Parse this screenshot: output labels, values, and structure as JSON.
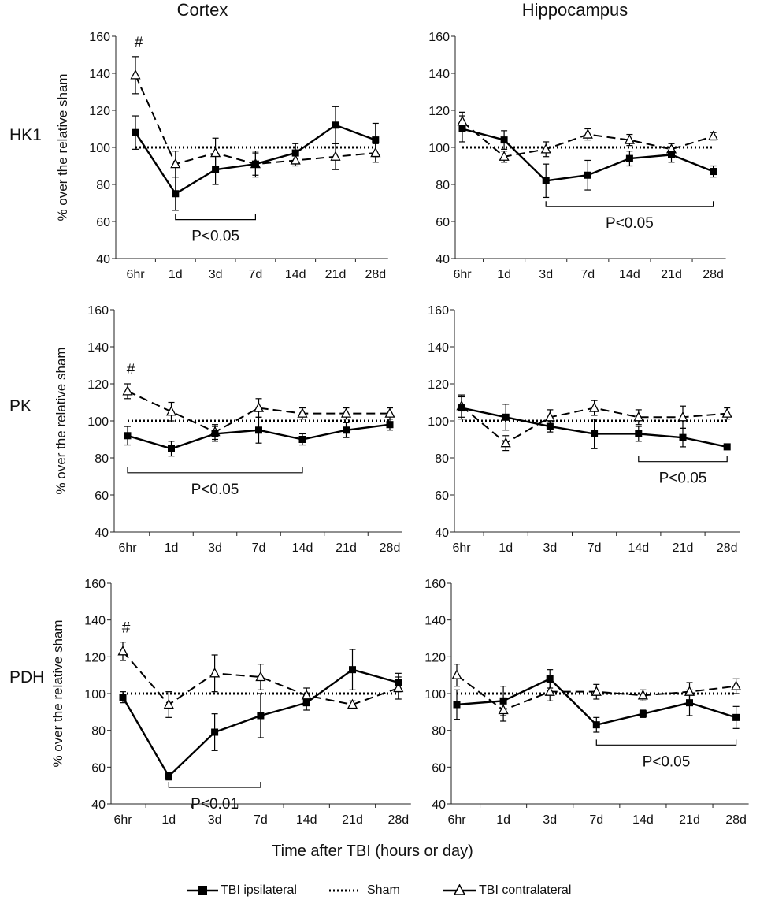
{
  "figure": {
    "col_titles": [
      "Cortex",
      "Hippocampus"
    ],
    "row_labels": [
      "HK1",
      "PK",
      "PDH"
    ],
    "xlabel": "Time after TBI (hours or day)",
    "legend": {
      "ipsi": "TBI ipsilateral",
      "sham": "Sham",
      "contra": "TBI contralateral"
    }
  },
  "chart_data": [
    {
      "type": "line",
      "title": "Cortex",
      "row": "HK1",
      "ylabel": "% over the relative sham",
      "categories": [
        "6hr",
        "1d",
        "3d",
        "7d",
        "14d",
        "21d",
        "28d"
      ],
      "ylim": [
        40,
        160
      ],
      "yticks": [
        40,
        60,
        80,
        100,
        120,
        140,
        160
      ],
      "series": [
        {
          "name": "TBI ipsilateral",
          "values": [
            108,
            75,
            88,
            91,
            97,
            112,
            104
          ],
          "errors": [
            9,
            9,
            8,
            6,
            5,
            10,
            9
          ]
        },
        {
          "name": "Sham",
          "values": [
            100,
            100,
            100,
            100,
            100,
            100,
            100
          ]
        },
        {
          "name": "TBI contralateral",
          "values": [
            139,
            91,
            97,
            91,
            93,
            95,
            97
          ],
          "errors": [
            10,
            7,
            8,
            7,
            3,
            7,
            5
          ]
        }
      ],
      "annotations": {
        "hash": {
          "text": "#",
          "at": "6hr"
        },
        "bracket": {
          "text": "P<0.05",
          "from": "1d",
          "to": "7d",
          "y": 61
        }
      }
    },
    {
      "type": "line",
      "title": "Hippocampus",
      "row": "HK1",
      "ylabel": "",
      "categories": [
        "6hr",
        "1d",
        "3d",
        "7d",
        "14d",
        "21d",
        "28d"
      ],
      "ylim": [
        40,
        160
      ],
      "yticks": [
        40,
        60,
        80,
        100,
        120,
        140,
        160
      ],
      "series": [
        {
          "name": "TBI ipsilateral",
          "values": [
            110,
            104,
            82,
            85,
            94,
            96,
            87
          ],
          "errors": [
            7,
            5,
            9,
            8,
            4,
            4,
            3
          ]
        },
        {
          "name": "Sham",
          "values": [
            100,
            100,
            100,
            100,
            100,
            100,
            100
          ]
        },
        {
          "name": "TBI contralateral",
          "values": [
            114,
            95,
            99,
            107,
            104,
            99,
            106
          ],
          "errors": [
            5,
            3,
            4,
            3,
            3,
            3,
            2
          ]
        }
      ],
      "annotations": {
        "bracket": {
          "text": "P<0.05",
          "from": "3d",
          "to": "28d",
          "y": 68
        }
      }
    },
    {
      "type": "line",
      "title": "Cortex",
      "row": "PK",
      "ylabel": "% over the relative sham",
      "categories": [
        "6hr",
        "1d",
        "3d",
        "7d",
        "14d",
        "21d",
        "28d"
      ],
      "ylim": [
        40,
        160
      ],
      "yticks": [
        40,
        60,
        80,
        100,
        120,
        140,
        160
      ],
      "series": [
        {
          "name": "TBI ipsilateral",
          "values": [
            92,
            85,
            93,
            95,
            90,
            95,
            98
          ],
          "errors": [
            5,
            4,
            4,
            7,
            3,
            4,
            3
          ]
        },
        {
          "name": "Sham",
          "values": [
            100,
            100,
            100,
            100,
            100,
            100,
            100
          ]
        },
        {
          "name": "TBI contralateral",
          "values": [
            116,
            105,
            94,
            107,
            104,
            104,
            104
          ],
          "errors": [
            4,
            5,
            4,
            5,
            3,
            3,
            3
          ]
        }
      ],
      "annotations": {
        "hash": {
          "text": "#",
          "at": "6hr"
        },
        "bracket": {
          "text": "P<0.05",
          "from": "6hr",
          "to": "14d",
          "y": 72
        }
      }
    },
    {
      "type": "line",
      "title": "Hippocampus",
      "row": "PK",
      "ylabel": "",
      "categories": [
        "6hr",
        "1d",
        "3d",
        "7d",
        "14d",
        "21d",
        "28d"
      ],
      "ylim": [
        40,
        160
      ],
      "yticks": [
        40,
        60,
        80,
        100,
        120,
        140,
        160
      ],
      "series": [
        {
          "name": "TBI ipsilateral",
          "values": [
            107,
            102,
            97,
            93,
            93,
            91,
            86
          ],
          "errors": [
            6,
            7,
            3,
            8,
            4,
            5,
            1
          ]
        },
        {
          "name": "Sham",
          "values": [
            100,
            100,
            100,
            100,
            100,
            100,
            100
          ]
        },
        {
          "name": "TBI contralateral",
          "values": [
            108,
            88,
            102,
            107,
            102,
            102,
            104
          ],
          "errors": [
            6,
            4,
            4,
            4,
            4,
            6,
            3
          ]
        }
      ],
      "annotations": {
        "bracket": {
          "text": "P<0.05",
          "from": "14d",
          "to": "28d",
          "y": 78
        }
      }
    },
    {
      "type": "line",
      "title": "Cortex",
      "row": "PDH",
      "ylabel": "% over the relative sham",
      "categories": [
        "6hr",
        "1d",
        "3d",
        "7d",
        "14d",
        "21d",
        "28d"
      ],
      "ylim": [
        40,
        160
      ],
      "yticks": [
        40,
        60,
        80,
        100,
        120,
        140,
        160
      ],
      "series": [
        {
          "name": "TBI ipsilateral",
          "values": [
            98,
            55,
            79,
            88,
            95,
            113,
            106
          ],
          "errors": [
            3,
            2,
            10,
            12,
            4,
            11,
            5
          ]
        },
        {
          "name": "Sham",
          "values": [
            100,
            100,
            100,
            100,
            100,
            100,
            100
          ]
        },
        {
          "name": "TBI contralateral",
          "values": [
            123,
            94,
            111,
            109,
            99,
            94,
            103
          ],
          "errors": [
            5,
            7,
            10,
            7,
            4,
            2,
            6
          ]
        }
      ],
      "annotations": {
        "hash": {
          "text": "#",
          "at": "6hr"
        },
        "bracket": {
          "text": "P<0.01",
          "from": "1d",
          "to": "7d",
          "y": 49
        }
      }
    },
    {
      "type": "line",
      "title": "Hippocampus",
      "row": "PDH",
      "ylabel": "",
      "categories": [
        "6hr",
        "1d",
        "3d",
        "7d",
        "14d",
        "21d",
        "28d"
      ],
      "ylim": [
        40,
        160
      ],
      "yticks": [
        40,
        60,
        80,
        100,
        120,
        140,
        160
      ],
      "series": [
        {
          "name": "TBI ipsilateral",
          "values": [
            94,
            96,
            108,
            83,
            89,
            95,
            87
          ],
          "errors": [
            8,
            8,
            5,
            4,
            2,
            7,
            6
          ]
        },
        {
          "name": "Sham",
          "values": [
            100,
            100,
            100,
            100,
            100,
            100,
            100
          ]
        },
        {
          "name": "TBI contralateral",
          "values": [
            110,
            91,
            101,
            101,
            99,
            101,
            104
          ],
          "errors": [
            6,
            6,
            5,
            4,
            3,
            5,
            4
          ]
        }
      ],
      "annotations": {
        "bracket": {
          "text": "P<0.05",
          "from": "7d",
          "to": "28d",
          "y": 72
        }
      }
    }
  ]
}
